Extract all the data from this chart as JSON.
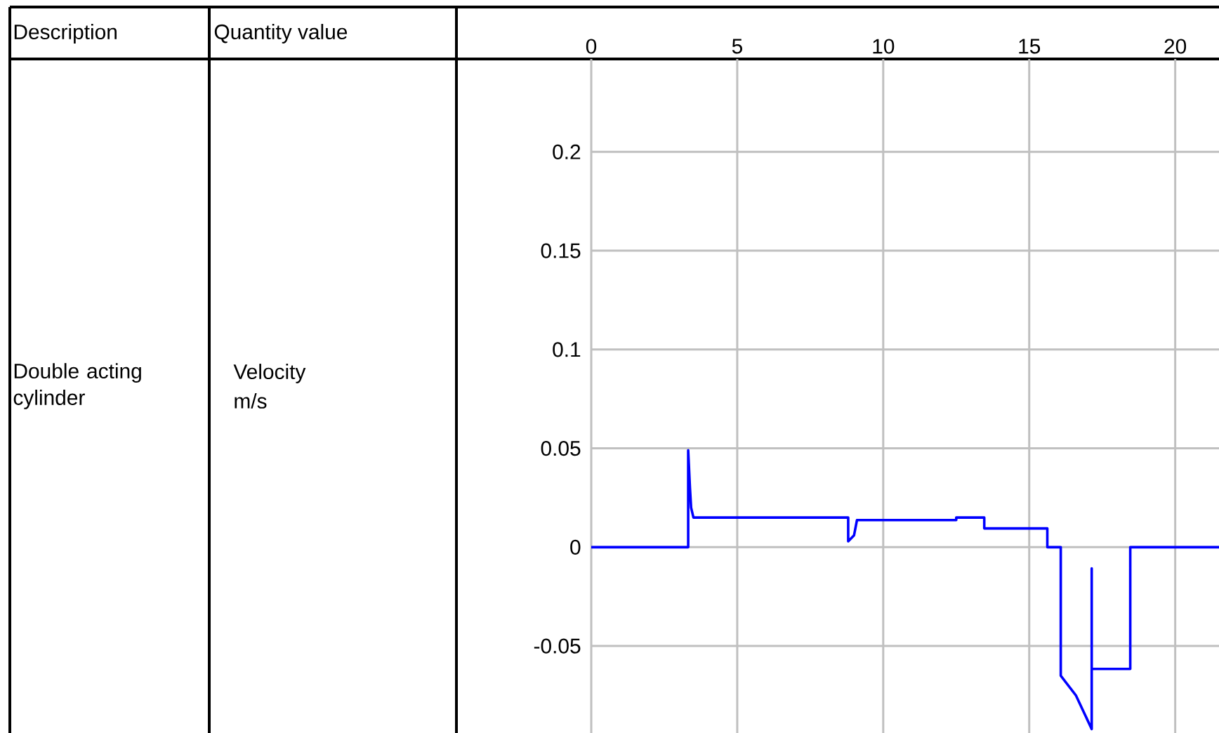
{
  "chart_data": {
    "type": "line",
    "annotations": [
      "Description",
      "Quantity value",
      "Double acting cylinder",
      "Velocity",
      "m/s"
    ],
    "x": [
      0,
      3.32,
      3.32,
      3.38,
      3.42,
      3.5,
      8.8,
      8.8,
      9.0,
      9.1,
      12.5,
      12.5,
      13.46,
      13.46,
      15.62,
      15.62,
      16.08,
      16.08,
      16.6,
      17.14,
      17.14,
      17.14,
      18.46,
      18.46,
      21.5
    ],
    "series": [
      {
        "color": "#0000ff",
        "values": [
          0,
          0,
          0.049,
          0.03,
          0.02,
          0.015,
          0.015,
          0.003,
          0.006,
          0.0137,
          0.0137,
          0.015,
          0.015,
          0.0095,
          0.0095,
          0,
          0,
          -0.065,
          -0.075,
          -0.092,
          -0.0107,
          -0.0616,
          -0.0616,
          0,
          0
        ]
      }
    ],
    "xlim": [
      0,
      21.5
    ],
    "ylim": [
      -0.094,
      0.247
    ],
    "xticks": [
      0,
      5,
      10,
      15,
      20
    ],
    "yticks": [
      -0.05,
      0,
      0.05,
      0.1,
      0.15,
      0.2
    ],
    "grid": true,
    "line_style": "solid",
    "marker": "none"
  }
}
